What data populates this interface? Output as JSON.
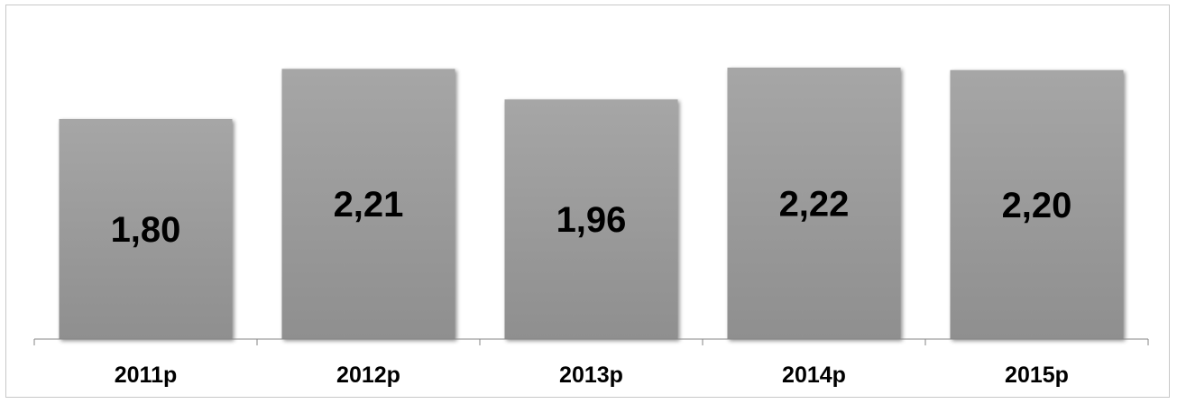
{
  "chart_data": {
    "type": "bar",
    "title": "",
    "xlabel": "",
    "ylabel": "",
    "categories": [
      "2011p",
      "2012p",
      "2013p",
      "2014p",
      "2015p"
    ],
    "values": [
      1.8,
      2.21,
      1.96,
      2.22,
      2.2
    ],
    "value_labels": [
      "1,80",
      "2,21",
      "1,96",
      "2,22",
      "2,20"
    ],
    "ylim": [
      0,
      2.5
    ],
    "grid": false,
    "legend": "none",
    "bar_color": "#a6a6a6",
    "bar_color_bottom": "#8f8f8f",
    "axis_color": "#868686"
  }
}
